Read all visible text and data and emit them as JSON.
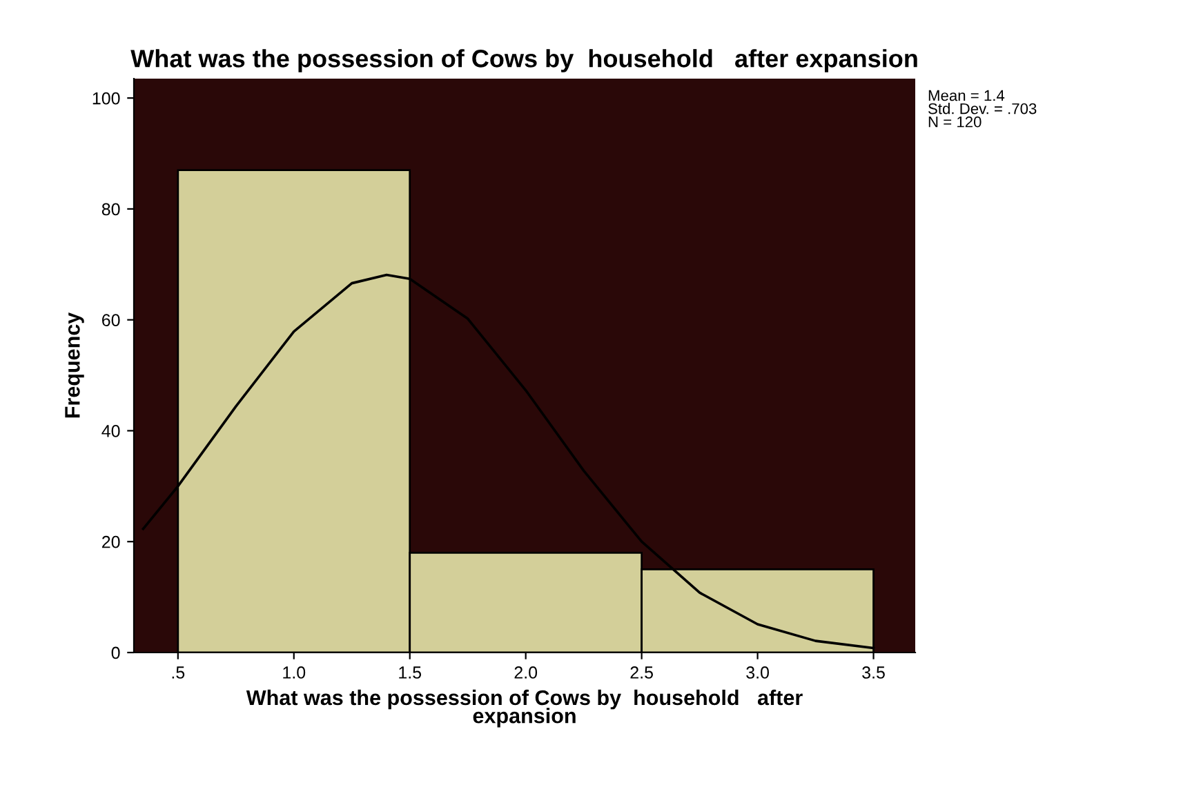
{
  "chart_data": {
    "type": "histogram",
    "title": "What was the possession of Cows by  household   after expansion",
    "xlabel": "What was the possession of Cows by  household   after\nexpansion",
    "ylabel": "Frequency",
    "bins": [
      0.5,
      1.5,
      2.5,
      3.5
    ],
    "values": [
      87,
      18,
      15
    ],
    "color": "#d3cf99",
    "series": [
      {
        "type": "line",
        "color": "#000000",
        "x": [
          0.35,
          0.5,
          0.75,
          1.0,
          1.25,
          1.4,
          1.5,
          1.75,
          2.0,
          2.25,
          2.5,
          2.75,
          3.0,
          3.25,
          3.5
        ],
        "values": [
          22.3,
          30.0,
          44.4,
          57.9,
          66.6,
          68.1,
          67.4,
          60.2,
          47.3,
          32.8,
          20.0,
          10.8,
          5.1,
          2.1,
          0.8
        ]
      }
    ],
    "xlim": [
      0.31,
      3.68
    ],
    "ylim": [
      0,
      103.5
    ],
    "xticks": [
      {
        "value": 0.5,
        "label": ".5"
      },
      {
        "value": 1.0,
        "label": "1.0"
      },
      {
        "value": 1.5,
        "label": "1.5"
      },
      {
        "value": 2.0,
        "label": "2.0"
      },
      {
        "value": 2.5,
        "label": "2.5"
      },
      {
        "value": 3.0,
        "label": "3.0"
      },
      {
        "value": 3.5,
        "label": "3.5"
      }
    ],
    "yticks": [
      0,
      20,
      40,
      60,
      80,
      100
    ],
    "annotations": [
      "Mean = 1.4\nStd. Dev. = .703\nN = 120"
    ],
    "grid": false,
    "legend": false
  }
}
